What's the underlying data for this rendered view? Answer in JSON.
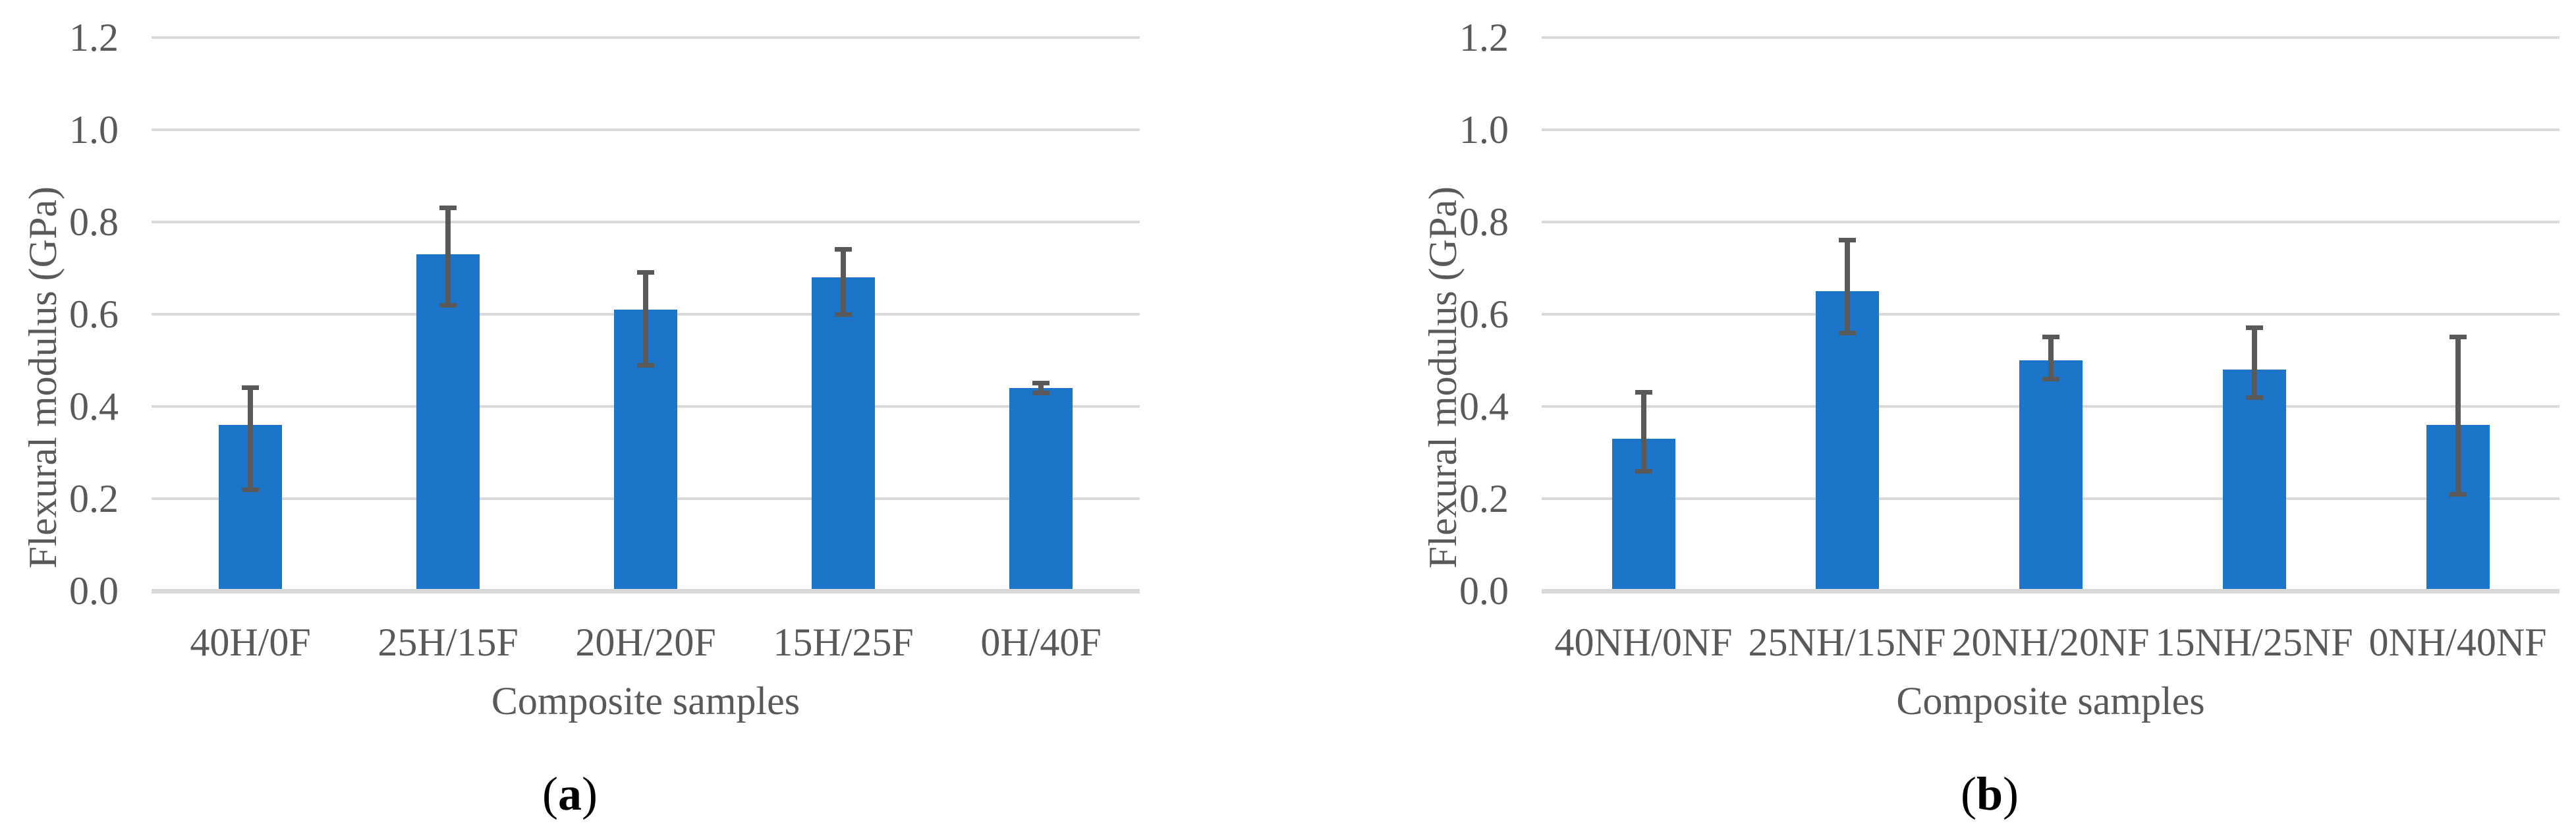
{
  "figure": {
    "background": "#ffffff",
    "colors": {
      "bar": "#1C75C8",
      "grid": "#D9D9D9",
      "error": "#595959",
      "text": "#595959",
      "caption_text": "#000000"
    }
  },
  "chart_data": [
    {
      "type": "bar",
      "caption_open": "(",
      "caption_letter": "a",
      "caption_close": ")",
      "title": "",
      "xlabel": "Composite samples",
      "ylabel": "Flexural modulus (GPa)",
      "ylim": [
        0,
        1.2
      ],
      "yticks": [
        "0.0",
        "0.2",
        "0.4",
        "0.6",
        "0.8",
        "1.0",
        "1.2"
      ],
      "grid": true,
      "legend": null,
      "categories": [
        "40H/0F",
        "25H/15F",
        "20H/20F",
        "15H/25F",
        "0H/40F"
      ],
      "values": [
        0.36,
        0.73,
        0.61,
        0.68,
        0.44
      ],
      "error_top": [
        0.44,
        0.83,
        0.69,
        0.74,
        0.45
      ],
      "error_bottom": [
        0.22,
        0.62,
        0.49,
        0.6,
        0.43
      ]
    },
    {
      "type": "bar",
      "caption_open": "(",
      "caption_letter": "b",
      "caption_close": ")",
      "title": "",
      "xlabel": "Composite samples",
      "ylabel": "Flexural modulus (GPa)",
      "ylim": [
        0,
        1.2
      ],
      "yticks": [
        "0.0",
        "0.2",
        "0.4",
        "0.6",
        "0.8",
        "1.0",
        "1.2"
      ],
      "grid": true,
      "legend": null,
      "categories": [
        "40NH/0NF",
        "25NH/15NF",
        "20NH/20NF",
        "15NH/25NF",
        "0NH/40NF"
      ],
      "values": [
        0.33,
        0.65,
        0.5,
        0.48,
        0.36
      ],
      "error_top": [
        0.43,
        0.76,
        0.55,
        0.57,
        0.55
      ],
      "error_bottom": [
        0.26,
        0.56,
        0.46,
        0.42,
        0.21
      ]
    }
  ]
}
